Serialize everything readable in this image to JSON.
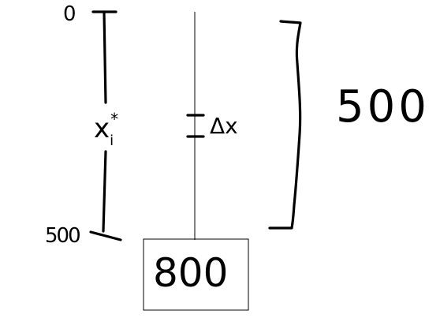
{
  "diagram": {
    "scale": {
      "top_label": "0",
      "bottom_label": "500",
      "variable": "x",
      "variable_subscript": "i",
      "variable_superscript": "*"
    },
    "segment": {
      "label": "Δx"
    },
    "span": {
      "label": "500"
    },
    "box": {
      "value": "800"
    }
  }
}
